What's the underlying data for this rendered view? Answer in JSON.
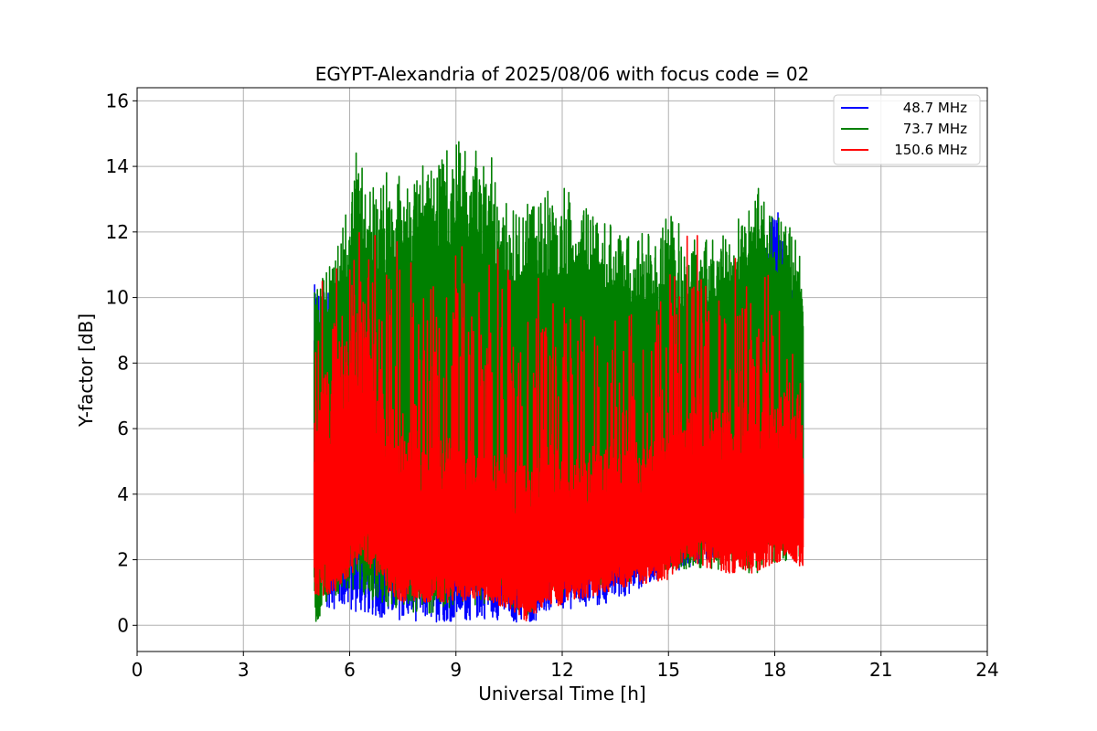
{
  "chart_data": {
    "type": "line",
    "title": "EGYPT-Alexandria of 2025/08/06 with focus code = 02",
    "xlabel": "Universal Time [h]",
    "ylabel": "Y-factor [dB]",
    "xlim": [
      0,
      24
    ],
    "ylim": [
      -0.8,
      16.4
    ],
    "xticks": [
      0,
      3,
      6,
      9,
      12,
      15,
      18,
      21,
      24
    ],
    "yticks": [
      0,
      2,
      4,
      6,
      8,
      10,
      12,
      14,
      16
    ],
    "grid": true,
    "legend_position": "top-right",
    "data_range_x": [
      5.0,
      18.8
    ],
    "series": [
      {
        "name": "48.7 MHz",
        "color": "#0000ff",
        "envelope": {
          "x": [
            5.0,
            6.0,
            7.0,
            8.0,
            9.0,
            10.0,
            11.0,
            12.0,
            13.0,
            14.0,
            15.0,
            16.0,
            17.0,
            17.5,
            18.0,
            18.5,
            18.8
          ],
          "upper": [
            10.4,
            10.0,
            9.2,
            9.0,
            9.0,
            8.8,
            8.4,
            8.6,
            8.6,
            8.4,
            9.0,
            9.0,
            9.2,
            10.0,
            13.2,
            10.4,
            8.2
          ],
          "lower": [
            0.6,
            0.4,
            0.2,
            0.1,
            0.1,
            0.2,
            0.0,
            0.5,
            0.5,
            1.0,
            1.6,
            1.9,
            2.0,
            2.2,
            2.4,
            2.4,
            2.4
          ]
        }
      },
      {
        "name": "73.7 MHz",
        "color": "#008000",
        "envelope": {
          "x": [
            5.0,
            5.5,
            6.0,
            6.2,
            6.5,
            7.0,
            7.5,
            8.0,
            8.5,
            9.0,
            9.5,
            10.0,
            10.5,
            11.0,
            11.5,
            12.0,
            12.5,
            13.0,
            13.5,
            14.0,
            14.5,
            15.0,
            15.5,
            16.0,
            16.5,
            17.0,
            17.5,
            18.0,
            18.5,
            18.8
          ],
          "upper": [
            10.6,
            11.4,
            13.0,
            15.6,
            13.2,
            13.8,
            14.0,
            14.2,
            14.6,
            14.9,
            14.7,
            14.3,
            12.6,
            13.0,
            13.2,
            13.6,
            12.9,
            12.6,
            12.2,
            11.9,
            12.3,
            12.6,
            12.3,
            12.3,
            12.1,
            12.6,
            13.6,
            12.8,
            12.2,
            10.8
          ],
          "lower": [
            0.0,
            0.9,
            1.0,
            1.0,
            0.8,
            0.5,
            0.5,
            0.3,
            0.3,
            0.6,
            0.6,
            0.7,
            0.6,
            0.2,
            0.9,
            0.8,
            1.2,
            1.2,
            1.3,
            1.2,
            1.6,
            1.6,
            1.7,
            1.7,
            1.7,
            1.6,
            1.6,
            1.9,
            1.9,
            2.2
          ],
          "upper_fill_floor": [
            8.8,
            9.0,
            9.2,
            9.0,
            8.6,
            8.8,
            9.0,
            9.2,
            9.2,
            9.4,
            9.4,
            9.2,
            8.4,
            8.4,
            8.6,
            8.6,
            8.4,
            8.2,
            8.0,
            7.6,
            7.6,
            7.8,
            8.0,
            8.0,
            8.2,
            8.4,
            8.8,
            9.0,
            9.0,
            8.6
          ]
        }
      },
      {
        "name": "150.6 MHz",
        "color": "#ff0000",
        "envelope": {
          "x": [
            5.0,
            5.5,
            6.0,
            6.3,
            6.5,
            7.0,
            7.5,
            8.0,
            8.5,
            9.0,
            9.5,
            10.0,
            10.5,
            11.0,
            11.5,
            12.0,
            12.5,
            13.0,
            13.5,
            14.0,
            14.5,
            15.0,
            15.5,
            16.0,
            16.5,
            17.0,
            17.5,
            18.0,
            18.5,
            18.8
          ],
          "upper": [
            10.4,
            12.4,
            13.4,
            13.9,
            13.4,
            12.6,
            12.4,
            12.2,
            12.6,
            12.8,
            12.6,
            12.6,
            12.0,
            12.4,
            11.4,
            11.6,
            10.9,
            10.6,
            10.4,
            10.4,
            11.6,
            11.8,
            12.6,
            13.0,
            12.6,
            12.4,
            12.2,
            12.0,
            9.0,
            8.2
          ],
          "lower": [
            0.9,
            0.9,
            1.5,
            1.9,
            1.9,
            1.0,
            0.7,
            0.7,
            0.7,
            0.7,
            0.8,
            0.7,
            0.5,
            0.1,
            0.6,
            0.6,
            0.8,
            0.9,
            1.1,
            1.2,
            1.3,
            1.4,
            2.0,
            1.8,
            1.6,
            1.6,
            1.6,
            1.9,
            2.0,
            1.7
          ],
          "dense_upper": [
            7.0,
            8.6,
            9.6,
            10.6,
            9.8,
            7.4,
            6.4,
            6.0,
            6.2,
            6.2,
            6.0,
            5.8,
            5.4,
            5.2,
            5.6,
            5.8,
            5.6,
            5.8,
            5.8,
            6.0,
            6.2,
            6.6,
            7.0,
            7.2,
            7.0,
            7.0,
            7.2,
            7.4,
            7.6,
            7.4
          ]
        }
      }
    ]
  }
}
